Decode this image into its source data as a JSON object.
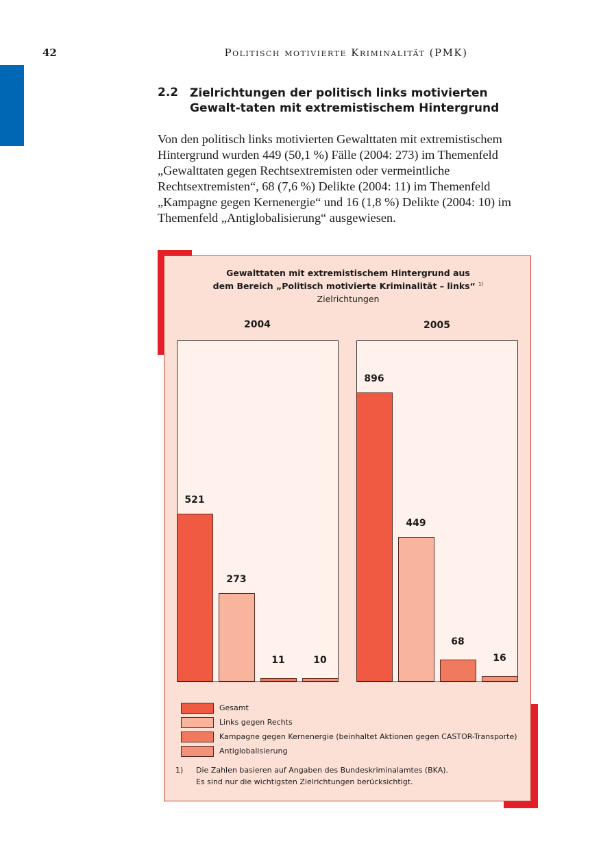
{
  "header": {
    "page_number": "42",
    "running_title": "Politisch motivierte Kriminalität (PMK)"
  },
  "section": {
    "number": "2.2",
    "title": "Zielrichtungen der politisch links motivierten Gewalt-taten mit extremistischem Hintergrund"
  },
  "body_text": "Von den politisch links motivierten Gewalttaten mit extremistischem Hintergrund wurden 449 (50,1 %) Fälle (2004: 273) im Themenfeld „Gewalttaten gegen Rechtsextremisten oder vermeintliche Rechtsextremisten“, 68 (7,6 %) Delikte (2004: 11) im Themenfeld „Kampagne gegen Kernenergie“ und 16 (1,8 %) Delikte (2004: 10) im Themenfeld „Antiglobalisierung“ ausgewiesen.",
  "chart_data": {
    "type": "bar",
    "title_line1": "Gewalttaten mit extremistischem Hintergrund aus",
    "title_line2": "dem Bereich „Politisch motivierte Kriminalität – links“",
    "title_footnote_mark": "1)",
    "subtitle": "Zielrichtungen",
    "categories": [
      "2004",
      "2005"
    ],
    "series": [
      {
        "name": "Gesamt",
        "color": "#f05a42",
        "values": [
          521,
          896
        ]
      },
      {
        "name": "Links gegen Rechts",
        "color": "#f8b49c",
        "values": [
          273,
          449
        ]
      },
      {
        "name": "Kampagne gegen Kernenergie (beinhaltet Aktionen gegen CASTOR-Transporte)",
        "color": "#f07a5e",
        "values": [
          11,
          68
        ]
      },
      {
        "name": "Antiglobalisierung",
        "color": "#f3927a",
        "values": [
          10,
          16
        ]
      }
    ],
    "legend": "bottom",
    "grid": false,
    "footnote_line1": "Die Zahlen basieren auf Angaben des Bundeskriminalamtes (BKA).",
    "footnote_line2": "Es sind nur die wichtigsten Zielrichtungen berücksichtigt.",
    "footnote_mark": "1)"
  },
  "colors": {
    "accent_blue": "#0067b4",
    "accent_red": "#e3202a",
    "chart_bg": "#fde0d5"
  }
}
